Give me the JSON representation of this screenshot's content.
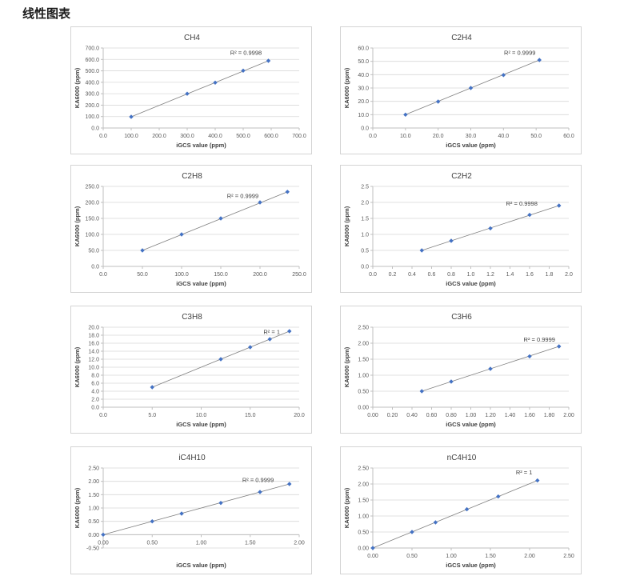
{
  "page": {
    "title": "线性图表"
  },
  "colors": {
    "marker": "#4472C4",
    "trendline": "#7f7f7f",
    "gridline": "#d9d9d9",
    "axis": "#bfbfbf",
    "tick_text": "#595959",
    "title_text": "#404040",
    "annotation_text": "#404040",
    "card_border": "#d3d3d3"
  },
  "chart_data": [
    {
      "type": "scatter",
      "title": "CH4",
      "xlabel": "iGCS value (ppm)",
      "ylabel": "KA6000 (ppm)",
      "xlim": [
        0,
        700
      ],
      "ylim": [
        0,
        700
      ],
      "x_ticks": [
        "0.0",
        "100.0",
        "200.0",
        "300.0",
        "400.0",
        "500.0",
        "600.0",
        "700.0"
      ],
      "y_ticks": [
        "0.0",
        "100.0",
        "200.0",
        "300.0",
        "400.0",
        "500.0",
        "600.0",
        "700.0"
      ],
      "points": [
        [
          100,
          98
        ],
        [
          300,
          300
        ],
        [
          400,
          397
        ],
        [
          500,
          502
        ],
        [
          590,
          588
        ]
      ],
      "trendline": true,
      "grid": true,
      "legend": false,
      "r2": {
        "text": "R² = 0.9998",
        "x": 510,
        "y": 640
      }
    },
    {
      "type": "scatter",
      "title": "C2H4",
      "xlabel": "iGCS value (ppm)",
      "ylabel": "KA6000 (ppm)",
      "xlim": [
        0,
        60
      ],
      "ylim": [
        0,
        60
      ],
      "x_ticks": [
        "0.0",
        "10.0",
        "20.0",
        "30.0",
        "40.0",
        "50.0",
        "60.0"
      ],
      "y_ticks": [
        "0.0",
        "10.0",
        "20.0",
        "30.0",
        "40.0",
        "50.0",
        "60.0"
      ],
      "points": [
        [
          10,
          10
        ],
        [
          20,
          19.8
        ],
        [
          30,
          30
        ],
        [
          40,
          39.7
        ],
        [
          51,
          51
        ]
      ],
      "trendline": true,
      "grid": true,
      "legend": false,
      "r2": {
        "text": "R² = 0.9999",
        "x": 45,
        "y": 55
      }
    },
    {
      "type": "scatter",
      "title": "C2H8",
      "xlabel": "iGCS value (ppm)",
      "ylabel": "KA6000 (ppm)",
      "xlim": [
        0,
        250
      ],
      "ylim": [
        0,
        250
      ],
      "x_ticks": [
        "0.0",
        "50.0",
        "100.0",
        "150.0",
        "200.0",
        "250.0"
      ],
      "y_ticks": [
        "0.0",
        "50.0",
        "100.0",
        "150.0",
        "200.0",
        "250.0"
      ],
      "points": [
        [
          50,
          50
        ],
        [
          100,
          100
        ],
        [
          150,
          150
        ],
        [
          200,
          200
        ],
        [
          235,
          233
        ]
      ],
      "trendline": true,
      "grid": true,
      "legend": false,
      "r2": {
        "text": "R² = 0.9999",
        "x": 178,
        "y": 214
      }
    },
    {
      "type": "scatter",
      "title": "C2H2",
      "xlabel": "iGCS value (ppm)",
      "ylabel": "KA6000 (ppm)",
      "xlim": [
        0,
        2.0
      ],
      "ylim": [
        0,
        2.5
      ],
      "x_ticks": [
        "0.0",
        "0.2",
        "0.4",
        "0.6",
        "0.8",
        "1.0",
        "1.2",
        "1.4",
        "1.6",
        "1.8",
        "2.0"
      ],
      "y_ticks": [
        "0.0",
        "0.5",
        "1.0",
        "1.5",
        "2.0",
        "2.5"
      ],
      "points": [
        [
          0.5,
          0.5
        ],
        [
          0.8,
          0.8
        ],
        [
          1.2,
          1.19
        ],
        [
          1.6,
          1.61
        ],
        [
          1.9,
          1.9
        ]
      ],
      "trendline": true,
      "grid": true,
      "legend": false,
      "r2": {
        "text": "R² = 0.9998",
        "x": 1.52,
        "y": 1.9
      }
    },
    {
      "type": "scatter",
      "title": "C3H8",
      "xlabel": "iGCS value (ppm)",
      "ylabel": "KA6000 (ppm)",
      "xlim": [
        0,
        20
      ],
      "ylim": [
        0,
        20
      ],
      "x_ticks": [
        "0.0",
        "5.0",
        "10.0",
        "15.0",
        "20.0"
      ],
      "y_ticks": [
        "0.0",
        "2.0",
        "4.0",
        "6.0",
        "8.0",
        "10.0",
        "12.0",
        "14.0",
        "16.0",
        "18.0",
        "20.0"
      ],
      "points": [
        [
          5,
          5
        ],
        [
          12,
          12
        ],
        [
          15,
          15
        ],
        [
          17,
          17
        ],
        [
          19,
          19
        ]
      ],
      "trendline": true,
      "grid": true,
      "legend": false,
      "r2": {
        "text": "R² = 1",
        "x": 17.2,
        "y": 18.3
      }
    },
    {
      "type": "scatter",
      "title": "C3H6",
      "xlabel": "iGCS value (ppm)",
      "ylabel": "KA6000 (ppm)",
      "xlim": [
        0,
        2.0
      ],
      "ylim": [
        0,
        2.5
      ],
      "x_ticks": [
        "0.00",
        "0.20",
        "0.40",
        "0.60",
        "0.80",
        "1.00",
        "1.20",
        "1.40",
        "1.60",
        "1.80",
        "2.00"
      ],
      "y_ticks": [
        "0.00",
        "0.50",
        "1.00",
        "1.50",
        "2.00",
        "2.50"
      ],
      "points": [
        [
          0.5,
          0.5
        ],
        [
          0.8,
          0.8
        ],
        [
          1.2,
          1.2
        ],
        [
          1.6,
          1.59
        ],
        [
          1.9,
          1.9
        ]
      ],
      "trendline": true,
      "grid": true,
      "legend": false,
      "r2": {
        "text": "R² = 0.9999",
        "x": 1.7,
        "y": 2.05
      }
    },
    {
      "type": "scatter",
      "title": "iC4H10",
      "xlabel": "iGCS value (ppm)",
      "ylabel": "KA6000 (ppm)",
      "xlim": [
        0,
        2.0
      ],
      "ylim": [
        -0.5,
        2.5
      ],
      "x_ticks": [
        "0.00",
        "0.50",
        "1.00",
        "1.50",
        "2.00"
      ],
      "y_ticks": [
        "-0.50",
        "0.00",
        "0.50",
        "1.00",
        "1.50",
        "2.00",
        "2.50"
      ],
      "points": [
        [
          0,
          0
        ],
        [
          0.5,
          0.5
        ],
        [
          0.8,
          0.79
        ],
        [
          1.2,
          1.19
        ],
        [
          1.6,
          1.6
        ],
        [
          1.9,
          1.9
        ]
      ],
      "trendline": true,
      "grid": true,
      "legend": false,
      "r2": {
        "text": "R² = 0.9999",
        "x": 1.58,
        "y": 1.97
      }
    },
    {
      "type": "scatter",
      "title": "nC4H10",
      "xlabel": "iGCS value (ppm)",
      "ylabel": "KA6000 (ppm)",
      "xlim": [
        0,
        2.5
      ],
      "ylim": [
        0,
        2.5
      ],
      "x_ticks": [
        "0.00",
        "0.50",
        "1.00",
        "1.50",
        "2.00",
        "2.50"
      ],
      "y_ticks": [
        "0.00",
        "0.50",
        "1.00",
        "1.50",
        "2.00",
        "2.50"
      ],
      "points": [
        [
          0,
          0
        ],
        [
          0.5,
          0.5
        ],
        [
          0.8,
          0.8
        ],
        [
          1.2,
          1.21
        ],
        [
          1.6,
          1.61
        ],
        [
          2.1,
          2.11
        ]
      ],
      "trendline": true,
      "grid": true,
      "legend": false,
      "r2": {
        "text": "R² = 1",
        "x": 1.93,
        "y": 2.3
      }
    }
  ]
}
